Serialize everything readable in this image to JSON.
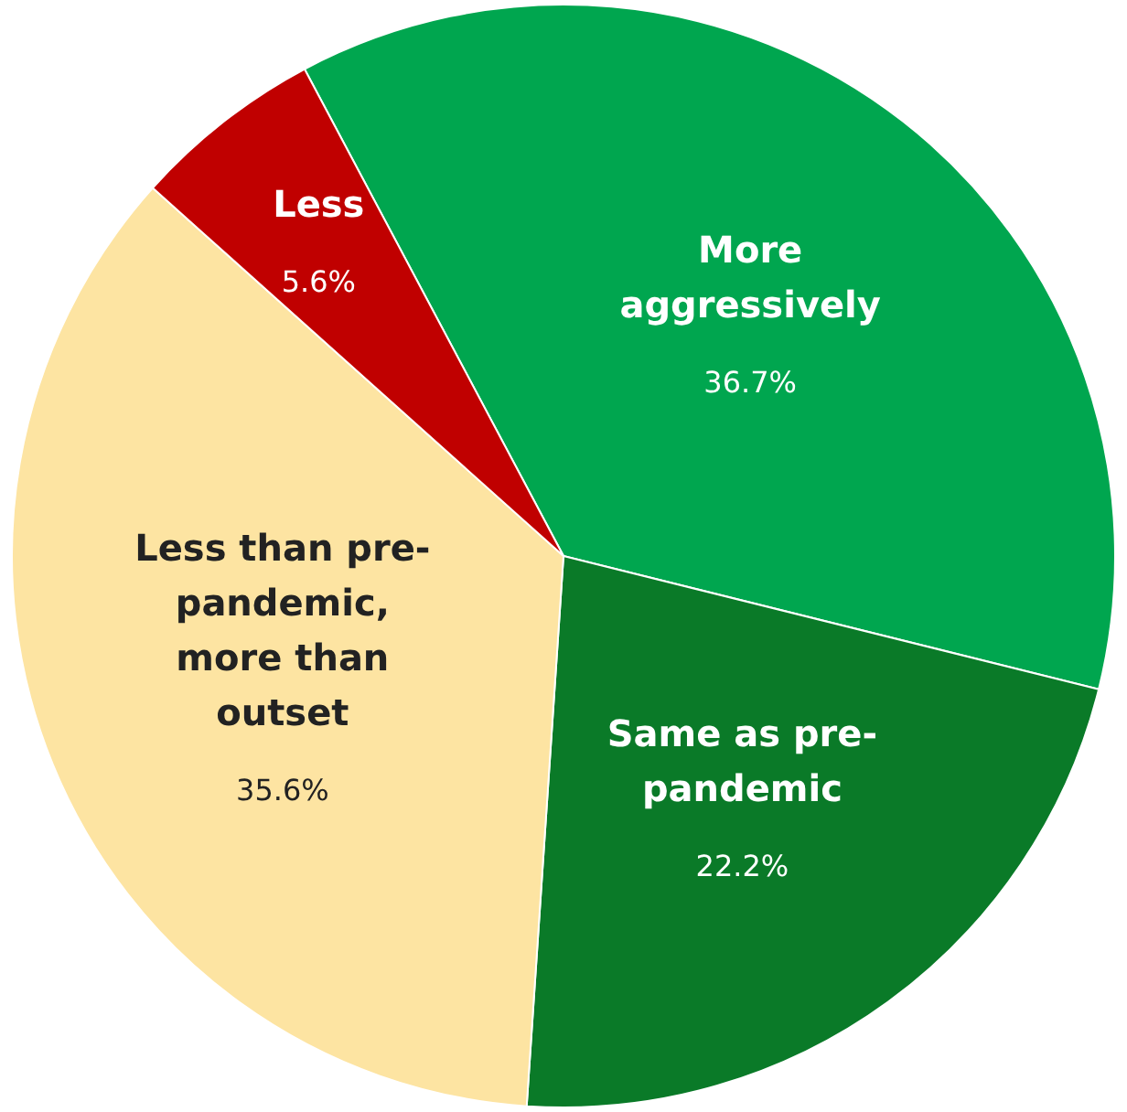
{
  "chart_data": {
    "type": "pie",
    "categories": [
      "More aggressively",
      "Same as pre-pandemic",
      "Less than pre-pandemic, more than outset",
      "Less"
    ],
    "values": [
      36.7,
      22.2,
      35.6,
      5.6
    ],
    "value_labels": [
      "36.7%",
      "22.2%",
      "35.6%",
      "5.6%"
    ],
    "colors": [
      "#00a64f",
      "#0a7a28",
      "#fde4a2",
      "#c00000"
    ],
    "legend": false
  }
}
